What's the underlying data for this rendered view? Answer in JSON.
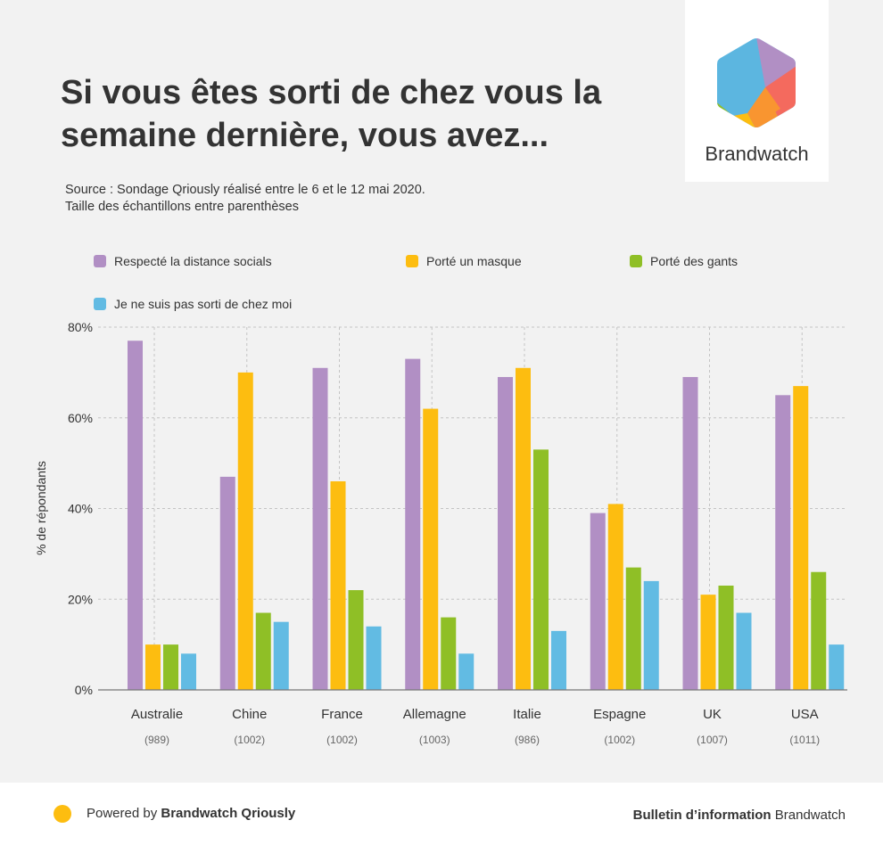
{
  "header": {
    "title": "Si vous êtes sorti de chez vous la semaine dernière, vous avez...",
    "source_line1": "Source : Sondage Qriously réalisé entre le 6 et le 12 mai 2020.",
    "source_line2": "Taille des échantillons entre parenthèses"
  },
  "logo": {
    "name": "Brandwatch",
    "icon": "brandwatch-hexagon-logo"
  },
  "colors": {
    "purple": "#b18fc4",
    "yellow": "#fdbd10",
    "green": "#8fbf26",
    "blue": "#62bbe3",
    "background": "#f2f2f2"
  },
  "chart_data": {
    "type": "bar",
    "title": "Si vous êtes sorti de chez vous la semaine dernière, vous avez...",
    "xlabel": "",
    "ylabel": "% de répondants",
    "ylim": [
      0,
      80
    ],
    "yticks": [
      0,
      20,
      40,
      60,
      80
    ],
    "ytick_labels": [
      "0%",
      "20%",
      "40%",
      "60%",
      "80%"
    ],
    "grid": true,
    "legend_position": "top",
    "categories": [
      "Australie",
      "Chine",
      "France",
      "Allemagne",
      "Italie",
      "Espagne",
      "UK",
      "USA"
    ],
    "sample_sizes": [
      "(989)",
      "(1002)",
      "(1002)",
      "(1003)",
      "(986)",
      "(1002)",
      "(1007)",
      "(1011)"
    ],
    "series": [
      {
        "name": "Respecté la distance socials",
        "color": "#b18fc4",
        "values": [
          77,
          47,
          71,
          73,
          69,
          39,
          69,
          65
        ]
      },
      {
        "name": "Porté un masque",
        "color": "#fdbd10",
        "values": [
          10,
          70,
          46,
          62,
          71,
          41,
          21,
          67
        ]
      },
      {
        "name": "Porté des gants",
        "color": "#8fbf26",
        "values": [
          10,
          17,
          22,
          16,
          53,
          27,
          23,
          26
        ]
      },
      {
        "name": "Je ne suis pas sorti de chez moi",
        "color": "#62bbe3",
        "values": [
          8,
          15,
          14,
          8,
          13,
          24,
          17,
          10
        ]
      }
    ]
  },
  "footer": {
    "powered_prefix": "Powered by ",
    "powered_brand": "Brandwatch Qriously",
    "bulletin_bold": "Bulletin d’information",
    "bulletin_brand": " Brandwatch"
  }
}
